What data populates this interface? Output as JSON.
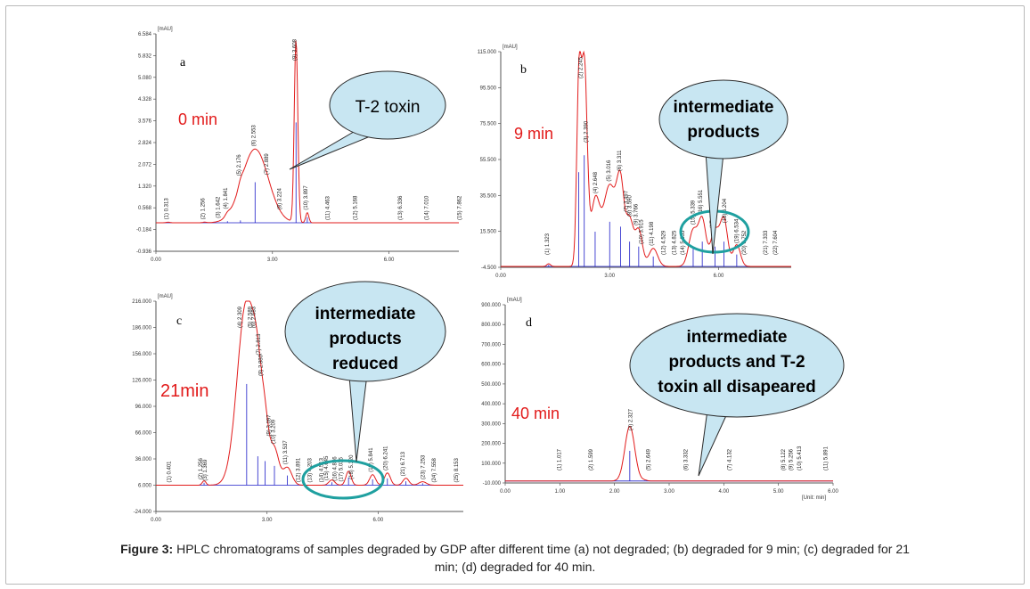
{
  "caption": {
    "label": "Figure 3:",
    "text": "HPLC chromatograms of samples degraded by GDP after different time (a) not degraded; (b) degraded for 9 min; (c) degraded for 21 min; (d) degraded for 40 min."
  },
  "colors": {
    "trace": "#e21b1b",
    "baseline": "#1c1cc8",
    "callout_fill": "#c8e6f2",
    "callout_stroke": "#2b2b2b",
    "ellipse": "#1fa0a0"
  },
  "chart_data": [
    {
      "type": "line",
      "panel_letter": "a",
      "time_label": "0 min",
      "unit_label": "[mAU]",
      "callout": [
        "T-2 toxin"
      ],
      "ylim": [
        -0.936,
        6.584
      ],
      "yticks": [
        "6.584",
        "5.832",
        "5.080",
        "4.328",
        "3.576",
        "2.824",
        "2.072",
        "1.320",
        "0.568",
        "-0.184",
        "-0.936"
      ],
      "xlim": [
        0,
        7.8
      ],
      "xticks": [
        "0.00",
        "3.00",
        "6.00"
      ],
      "xtick_values": [
        0,
        3,
        6
      ],
      "baseline": 0.05,
      "peaks": [
        [
          2.553,
          2.55,
          0.34
        ],
        [
          3.607,
          6.31,
          0.045
        ],
        [
          3.897,
          0.35,
          0.04
        ],
        [
          1.841,
          0.1,
          0.06
        ],
        [
          2.176,
          0.15,
          0.06
        ],
        [
          0.313,
          0.02,
          0.05
        ],
        [
          1.256,
          0.02,
          0.05
        ]
      ],
      "peak_labels": [
        "(1) 0.313",
        "(2) 1.256",
        "(3) 1.642",
        "(4) 1.841",
        "(5) 2.176",
        "(6) 2.553",
        "(7) 2.889",
        "(8) 3.224",
        "(9) 3.608",
        "(10) 3.897",
        "(11) 4.463",
        "(12) 5.168",
        "(13) 6.336",
        "(14) 7.010",
        "(15) 7.862"
      ],
      "peak_label_times": [
        0.313,
        1.256,
        1.642,
        1.841,
        2.176,
        2.553,
        2.889,
        3.224,
        3.608,
        3.897,
        4.463,
        5.168,
        6.336,
        7.01,
        7.862
      ]
    },
    {
      "type": "line",
      "panel_letter": "b",
      "time_label": "9 min",
      "unit_label": "[mAU]",
      "callout": [
        "intermediate",
        "products"
      ],
      "ylim": [
        -4.5,
        115.0
      ],
      "yticks": [
        "115.000",
        "95.500",
        "75.500",
        "55.500",
        "35.500",
        "15.500",
        "-4.500"
      ],
      "xlim": [
        0,
        8.0
      ],
      "xticks": [
        "0.00",
        "3.00",
        "6.00"
      ],
      "xtick_values": [
        0,
        3,
        6
      ],
      "baseline": -4.0,
      "peaks": [
        [
          2.15,
          95,
          0.06
        ],
        [
          2.3,
          112,
          0.08
        ],
        [
          2.6,
          35,
          0.12
        ],
        [
          3.0,
          45,
          0.18
        ],
        [
          3.3,
          40,
          0.1
        ],
        [
          3.55,
          25,
          0.1
        ],
        [
          3.8,
          20,
          0.1
        ],
        [
          4.2,
          10,
          0.12
        ],
        [
          5.3,
          20,
          0.12
        ],
        [
          5.55,
          25,
          0.1
        ],
        [
          5.9,
          20,
          0.12
        ],
        [
          6.15,
          25,
          0.1
        ],
        [
          6.5,
          12,
          0.1
        ],
        [
          1.32,
          1.5,
          0.05
        ]
      ],
      "peak_labels": [
        "(1) 1.323",
        "(2) 2.245",
        "(3) 2.390",
        "(4) 2.648",
        "(5) 3.016",
        "(6) 3.311",
        "(7) 3.497",
        "(8) 3.590",
        "(9) 3.766",
        "(10) 3.915",
        "(11) 4.198",
        "(12) 4.529",
        "(13) 4.825",
        "(14) 5.055",
        "(15) 5.339",
        "(16) 5.551",
        "(17) 5.861",
        "(18) 6.204",
        "(19) 6.534",
        "(20) 6.752",
        "(21) 7.333",
        "(22) 7.604"
      ],
      "peak_label_times": [
        1.323,
        2.245,
        2.39,
        2.648,
        3.016,
        3.311,
        3.497,
        3.59,
        3.766,
        3.915,
        4.198,
        4.529,
        4.825,
        5.055,
        5.339,
        5.551,
        5.861,
        6.204,
        6.534,
        6.752,
        7.333,
        7.604
      ]
    },
    {
      "type": "line",
      "panel_letter": "c",
      "time_label": "21min",
      "unit_label": "[mAU]",
      "callout": [
        "intermediate",
        "products",
        "reduced"
      ],
      "ylim": [
        -24.0,
        216.0
      ],
      "yticks": [
        "216.000",
        "186.000",
        "156.000",
        "126.000",
        "96.000",
        "66.000",
        "36.000",
        "6.000",
        "-24.000"
      ],
      "xlim": [
        0,
        8.3
      ],
      "xticks": [
        "0.00",
        "3.00",
        "6.00"
      ],
      "xtick_values": [
        0,
        3,
        6
      ],
      "baseline": 6.0,
      "peaks": [
        [
          1.3,
          5,
          0.05
        ],
        [
          2.45,
          210,
          0.25
        ],
        [
          2.75,
          60,
          0.12
        ],
        [
          2.95,
          50,
          0.1
        ],
        [
          3.2,
          40,
          0.12
        ],
        [
          3.55,
          20,
          0.12
        ],
        [
          4.75,
          6,
          0.08
        ],
        [
          5.2,
          16,
          0.07
        ],
        [
          5.85,
          12,
          0.08
        ],
        [
          6.25,
          14,
          0.08
        ],
        [
          6.75,
          8,
          0.08
        ],
        [
          7.2,
          4,
          0.1
        ]
      ],
      "peak_labels": [
        "(1) 0.401",
        "(2) 1.256",
        "(3) 1.369",
        "(4) 2.309",
        "(5) 2.589",
        "(6) 2.683",
        "(7) 2.813",
        "(8) 2.880",
        "(9) 3.097",
        "(10) 3.209",
        "(11) 3.537",
        "(12) 3.891",
        "(13) 4.203",
        "(14) 4.513",
        "(15) 4.645",
        "(16) 4.876",
        "(17) 5.036",
        "(18) 5.320",
        "(19) 5.841",
        "(20) 6.241",
        "(21) 6.713",
        "(23) 7.253",
        "(24) 7.558",
        "(25) 8.153"
      ],
      "peak_label_times": [
        0.401,
        1.256,
        1.369,
        2.309,
        2.589,
        2.683,
        2.813,
        2.88,
        3.097,
        3.209,
        3.537,
        3.891,
        4.203,
        4.513,
        4.645,
        4.876,
        5.036,
        5.32,
        5.841,
        6.241,
        6.713,
        7.253,
        7.558,
        8.153
      ]
    },
    {
      "type": "line",
      "panel_letter": "d",
      "time_label": "40 min",
      "unit_label": "[mAU]",
      "unit_x": "[Unit: min]",
      "callout": [
        "intermediate",
        "products and T-2",
        "toxin all disapeared"
      ],
      "ylim": [
        -10.0,
        900.0
      ],
      "yticks": [
        "900.000",
        "800.000",
        "700.000",
        "600.000",
        "500.000",
        "400.000",
        "300.000",
        "200.000",
        "100.000",
        "-10.000"
      ],
      "xlim": [
        0,
        6.0
      ],
      "xticks": [
        "0.00",
        "1.00",
        "2.00",
        "3.00",
        "4.00",
        "5.00",
        "6.00"
      ],
      "xtick_values": [
        0,
        1,
        2,
        3,
        4,
        5,
        6
      ],
      "baseline": 0.0,
      "peaks": [
        [
          2.28,
          280,
          0.09
        ],
        [
          2.55,
          4,
          0.05
        ]
      ],
      "peak_labels": [
        "(1) 1.017",
        "(2) 1.599",
        "(4) 2.327",
        "(5) 2.649",
        "(6) 3.332",
        "(7) 4.132",
        "(8) 5.122",
        "(9) 5.256",
        "(10) 5.413",
        "(11) 5.891"
      ],
      "peak_label_times": [
        1.017,
        1.599,
        2.327,
        2.649,
        3.332,
        4.132,
        5.122,
        5.256,
        5.413,
        5.891
      ]
    }
  ]
}
